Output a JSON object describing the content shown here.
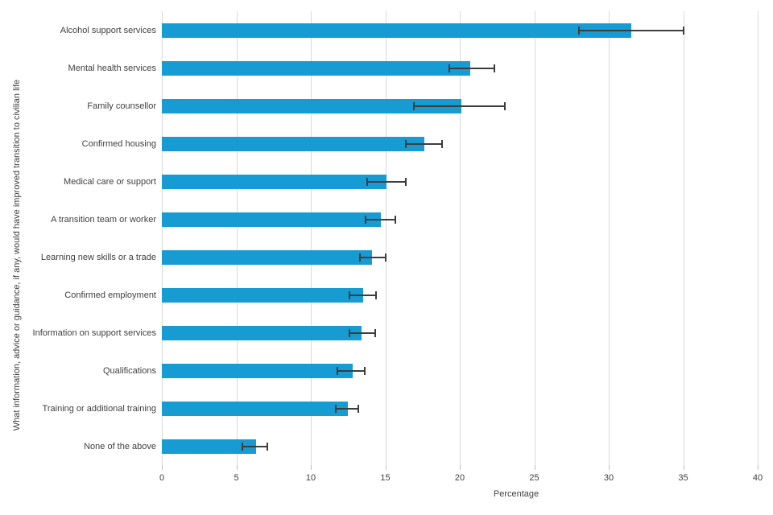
{
  "chart_data": {
    "type": "bar",
    "orientation": "horizontal",
    "title": "",
    "xlabel": "Percentage",
    "ylabel": "What information, advice or guidance, if any, would have improved transition to civilian life",
    "xlim": [
      0,
      40
    ],
    "xticks": [
      0,
      5,
      10,
      15,
      20,
      25,
      30,
      35,
      40
    ],
    "grid": "vertical-on",
    "legend": "none",
    "bar_color": "#179bd3",
    "error_bar_color": "#3d3d3d",
    "categories": [
      "Alcohol support services",
      "Mental health services",
      "Family counsellor",
      "Confirmed housing",
      "Medical care or support",
      "A transition team or worker",
      "Learning new skills or a trade",
      "Confirmed employment",
      "Information on support services",
      "Qualifications",
      "Training or additional training",
      "None of the above"
    ],
    "values": [
      31.5,
      20.7,
      20.1,
      17.6,
      15.1,
      14.7,
      14.1,
      13.5,
      13.4,
      12.8,
      12.5,
      6.3
    ],
    "error_low": [
      28.0,
      19.3,
      16.9,
      16.4,
      13.8,
      13.7,
      13.3,
      12.6,
      12.6,
      11.8,
      11.7,
      5.4
    ],
    "error_high": [
      35.0,
      22.3,
      23.0,
      18.8,
      16.4,
      15.7,
      15.0,
      14.4,
      14.3,
      13.6,
      13.2,
      7.1
    ]
  }
}
